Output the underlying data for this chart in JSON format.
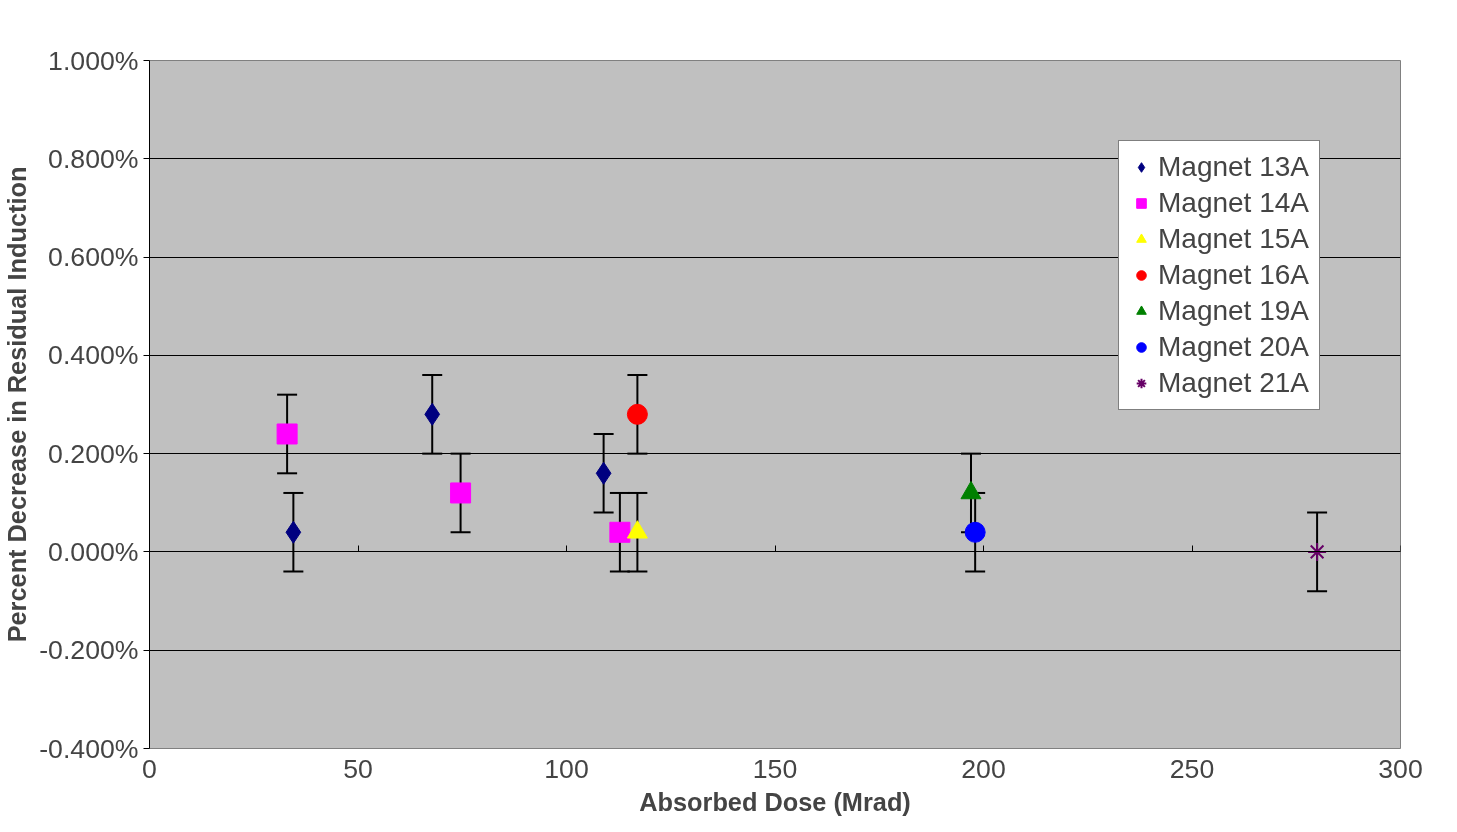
{
  "chart_data": {
    "type": "scatter",
    "xlabel": "Absorbed Dose (Mrad)",
    "ylabel": "Percent Decrease in Residual Induction",
    "xlim": [
      0,
      300
    ],
    "xticks": [
      0,
      50,
      100,
      150,
      200,
      250,
      300
    ],
    "ylim": [
      -0.4,
      1.0
    ],
    "yticks": [
      {
        "value": -0.4,
        "label": "-0.400%"
      },
      {
        "value": -0.2,
        "label": "-0.200%"
      },
      {
        "value": 0,
        "label": "0.000%"
      },
      {
        "value": 0.2,
        "label": "0.200%"
      },
      {
        "value": 0.4,
        "label": "0.400%"
      },
      {
        "value": 0.6,
        "label": "0.600%"
      },
      {
        "value": 0.8,
        "label": "0.800%"
      },
      {
        "value": 1.0,
        "label": "1.000%"
      }
    ],
    "grid": "y",
    "legend": "top right",
    "series": [
      {
        "name": "Magnet 13A",
        "color": "#000080",
        "marker": "diamond",
        "x": [
          34.5,
          67.8,
          108.9
        ],
        "values": [
          0.04,
          0.28,
          0.16
        ],
        "errors": [
          0.08,
          0.08,
          0.08
        ]
      },
      {
        "name": "Magnet 14A",
        "color": "#ff00ff",
        "marker": "square",
        "x": [
          33,
          74.6,
          112.8
        ],
        "values": [
          0.24,
          0.12,
          0.04
        ],
        "errors": [
          0.08,
          0.08,
          0.08
        ]
      },
      {
        "name": "Magnet 15A",
        "color": "#ffff00",
        "marker": "triangle",
        "x": [
          117
        ],
        "values": [
          0.04
        ],
        "errors": [
          0.08
        ]
      },
      {
        "name": "Magnet 16A",
        "color": "#ff0000",
        "marker": "circle",
        "x": [
          117
        ],
        "values": [
          0.28
        ],
        "errors": [
          0.08
        ]
      },
      {
        "name": "Magnet 19A",
        "color": "#008000",
        "marker": "triangle",
        "x": [
          197
        ],
        "values": [
          0.12
        ],
        "errors": [
          0.08
        ]
      },
      {
        "name": "Magnet 20A",
        "color": "#0000ff",
        "marker": "circle",
        "x": [
          198
        ],
        "values": [
          0.04
        ],
        "errors": [
          0.08
        ]
      },
      {
        "name": "Magnet 21A",
        "color": "#660066",
        "marker": "cross",
        "x": [
          280
        ],
        "values": [
          0.0
        ],
        "errors": [
          0.08
        ]
      }
    ]
  }
}
